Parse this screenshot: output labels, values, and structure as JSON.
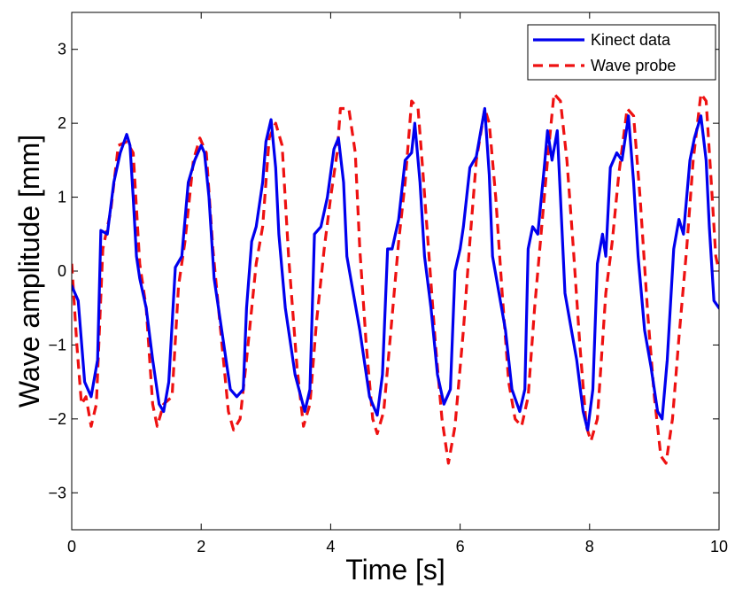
{
  "chart_data": {
    "type": "line",
    "title": "",
    "xlabel": "Time [s]",
    "ylabel": "Wave amplitude [mm]",
    "xlim": [
      0,
      10
    ],
    "ylim": [
      -3.5,
      3.5
    ],
    "xticks": [
      0,
      2,
      4,
      6,
      8,
      10
    ],
    "yticks": [
      -3,
      -2,
      -1,
      0,
      1,
      2,
      3
    ],
    "xtick_labels": [
      "0",
      "2",
      "4",
      "6",
      "8",
      "10"
    ],
    "ytick_labels": [
      "−3",
      "−2",
      "−1",
      "0",
      "1",
      "2",
      "3"
    ],
    "grid": false,
    "legend_position": "top-right",
    "series": [
      {
        "name": "Kinect data",
        "color": "#0000ee",
        "style": "solid",
        "points": [
          [
            0,
            -0.2
          ],
          [
            0.1,
            -0.4
          ],
          [
            0.2,
            -1.5
          ],
          [
            0.3,
            -1.7
          ],
          [
            0.4,
            -1.2
          ],
          [
            0.45,
            0.55
          ],
          [
            0.55,
            0.5
          ],
          [
            0.65,
            1.2
          ],
          [
            0.75,
            1.6
          ],
          [
            0.85,
            1.85
          ],
          [
            0.9,
            1.7
          ],
          [
            0.95,
            1.0
          ],
          [
            1.0,
            0.2
          ],
          [
            1.05,
            -0.1
          ],
          [
            1.15,
            -0.5
          ],
          [
            1.25,
            -1.2
          ],
          [
            1.35,
            -1.8
          ],
          [
            1.42,
            -1.9
          ],
          [
            1.5,
            -1.5
          ],
          [
            1.6,
            0.05
          ],
          [
            1.7,
            0.2
          ],
          [
            1.8,
            1.2
          ],
          [
            1.9,
            1.5
          ],
          [
            2.0,
            1.7
          ],
          [
            2.05,
            1.6
          ],
          [
            2.12,
            1.0
          ],
          [
            2.2,
            -0.1
          ],
          [
            2.25,
            -0.4
          ],
          [
            2.35,
            -1.0
          ],
          [
            2.45,
            -1.6
          ],
          [
            2.55,
            -1.7
          ],
          [
            2.65,
            -1.6
          ],
          [
            2.7,
            -0.5
          ],
          [
            2.78,
            0.4
          ],
          [
            2.85,
            0.6
          ],
          [
            2.95,
            1.2
          ],
          [
            3.0,
            1.75
          ],
          [
            3.08,
            2.05
          ],
          [
            3.15,
            1.4
          ],
          [
            3.2,
            0.5
          ],
          [
            3.3,
            -0.5
          ],
          [
            3.45,
            -1.4
          ],
          [
            3.6,
            -1.9
          ],
          [
            3.68,
            -1.6
          ],
          [
            3.75,
            0.5
          ],
          [
            3.85,
            0.6
          ],
          [
            3.95,
            1.0
          ],
          [
            4.05,
            1.65
          ],
          [
            4.12,
            1.8
          ],
          [
            4.2,
            1.2
          ],
          [
            4.25,
            0.2
          ],
          [
            4.35,
            -0.3
          ],
          [
            4.45,
            -0.8
          ],
          [
            4.6,
            -1.7
          ],
          [
            4.72,
            -1.95
          ],
          [
            4.8,
            -1.4
          ],
          [
            4.88,
            0.3
          ],
          [
            4.95,
            0.3
          ],
          [
            5.05,
            0.7
          ],
          [
            5.15,
            1.5
          ],
          [
            5.25,
            1.6
          ],
          [
            5.3,
            2.0
          ],
          [
            5.38,
            1.2
          ],
          [
            5.45,
            0.2
          ],
          [
            5.55,
            -0.5
          ],
          [
            5.65,
            -1.4
          ],
          [
            5.75,
            -1.8
          ],
          [
            5.85,
            -1.6
          ],
          [
            5.92,
            0.0
          ],
          [
            6.0,
            0.3
          ],
          [
            6.05,
            0.6
          ],
          [
            6.15,
            1.4
          ],
          [
            6.25,
            1.55
          ],
          [
            6.32,
            1.9
          ],
          [
            6.38,
            2.2
          ],
          [
            6.45,
            1.3
          ],
          [
            6.5,
            0.2
          ],
          [
            6.6,
            -0.3
          ],
          [
            6.7,
            -0.8
          ],
          [
            6.8,
            -1.6
          ],
          [
            6.92,
            -1.9
          ],
          [
            7.0,
            -1.6
          ],
          [
            7.05,
            0.3
          ],
          [
            7.12,
            0.6
          ],
          [
            7.2,
            0.5
          ],
          [
            7.3,
            1.4
          ],
          [
            7.35,
            1.9
          ],
          [
            7.42,
            1.5
          ],
          [
            7.5,
            1.9
          ],
          [
            7.55,
            1.0
          ],
          [
            7.62,
            -0.3
          ],
          [
            7.72,
            -0.8
          ],
          [
            7.8,
            -1.2
          ],
          [
            7.9,
            -1.9
          ],
          [
            7.97,
            -2.15
          ],
          [
            8.05,
            -1.6
          ],
          [
            8.12,
            0.1
          ],
          [
            8.2,
            0.5
          ],
          [
            8.25,
            0.2
          ],
          [
            8.32,
            1.4
          ],
          [
            8.42,
            1.6
          ],
          [
            8.5,
            1.5
          ],
          [
            8.6,
            2.1
          ],
          [
            8.68,
            1.2
          ],
          [
            8.75,
            0.2
          ],
          [
            8.85,
            -0.8
          ],
          [
            8.95,
            -1.3
          ],
          [
            9.05,
            -1.9
          ],
          [
            9.12,
            -2.0
          ],
          [
            9.2,
            -1.2
          ],
          [
            9.3,
            0.3
          ],
          [
            9.38,
            0.7
          ],
          [
            9.45,
            0.5
          ],
          [
            9.55,
            1.5
          ],
          [
            9.62,
            1.8
          ],
          [
            9.72,
            2.1
          ],
          [
            9.8,
            1.5
          ],
          [
            9.85,
            0.6
          ],
          [
            9.92,
            -0.4
          ],
          [
            10.0,
            -0.5
          ]
        ]
      },
      {
        "name": "Wave probe",
        "color": "#ee1111",
        "style": "dashed",
        "points": [
          [
            0,
            0.1
          ],
          [
            0.08,
            -1.0
          ],
          [
            0.15,
            -1.8
          ],
          [
            0.22,
            -1.7
          ],
          [
            0.3,
            -2.1
          ],
          [
            0.38,
            -1.8
          ],
          [
            0.48,
            0.3
          ],
          [
            0.6,
            0.8
          ],
          [
            0.72,
            1.7
          ],
          [
            0.85,
            1.75
          ],
          [
            0.95,
            1.6
          ],
          [
            1.05,
            0.1
          ],
          [
            1.15,
            -0.5
          ],
          [
            1.25,
            -1.8
          ],
          [
            1.32,
            -2.1
          ],
          [
            1.42,
            -1.8
          ],
          [
            1.55,
            -1.7
          ],
          [
            1.65,
            -0.2
          ],
          [
            1.75,
            0.4
          ],
          [
            1.88,
            1.5
          ],
          [
            1.98,
            1.8
          ],
          [
            2.08,
            1.6
          ],
          [
            2.18,
            0.3
          ],
          [
            2.3,
            -0.8
          ],
          [
            2.42,
            -1.9
          ],
          [
            2.5,
            -2.15
          ],
          [
            2.6,
            -2.0
          ],
          [
            2.7,
            -1.2
          ],
          [
            2.85,
            0.1
          ],
          [
            2.95,
            0.6
          ],
          [
            3.05,
            1.8
          ],
          [
            3.15,
            2.0
          ],
          [
            3.25,
            1.7
          ],
          [
            3.35,
            0.2
          ],
          [
            3.48,
            -1.3
          ],
          [
            3.58,
            -2.1
          ],
          [
            3.68,
            -1.8
          ],
          [
            3.78,
            -0.7
          ],
          [
            3.9,
            0.3
          ],
          [
            4.0,
            1.0
          ],
          [
            4.1,
            1.6
          ],
          [
            4.15,
            2.2
          ],
          [
            4.28,
            2.2
          ],
          [
            4.38,
            1.6
          ],
          [
            4.45,
            0.3
          ],
          [
            4.55,
            -1.0
          ],
          [
            4.65,
            -2.0
          ],
          [
            4.72,
            -2.2
          ],
          [
            4.82,
            -1.9
          ],
          [
            4.92,
            -0.9
          ],
          [
            5.05,
            0.4
          ],
          [
            5.15,
            1.2
          ],
          [
            5.25,
            2.3
          ],
          [
            5.35,
            2.2
          ],
          [
            5.42,
            1.4
          ],
          [
            5.52,
            0.2
          ],
          [
            5.62,
            -1.0
          ],
          [
            5.72,
            -2.0
          ],
          [
            5.82,
            -2.6
          ],
          [
            5.92,
            -2.1
          ],
          [
            6.05,
            -0.8
          ],
          [
            6.15,
            0.4
          ],
          [
            6.25,
            1.5
          ],
          [
            6.38,
            2.2
          ],
          [
            6.45,
            2.0
          ],
          [
            6.55,
            1.0
          ],
          [
            6.65,
            -0.3
          ],
          [
            6.75,
            -1.5
          ],
          [
            6.85,
            -2.0
          ],
          [
            6.95,
            -2.1
          ],
          [
            7.05,
            -1.7
          ],
          [
            7.15,
            -0.5
          ],
          [
            7.25,
            0.5
          ],
          [
            7.35,
            1.5
          ],
          [
            7.45,
            2.4
          ],
          [
            7.55,
            2.3
          ],
          [
            7.65,
            1.5
          ],
          [
            7.75,
            0.3
          ],
          [
            7.85,
            -1.0
          ],
          [
            7.95,
            -2.1
          ],
          [
            8.02,
            -2.3
          ],
          [
            8.12,
            -2.0
          ],
          [
            8.25,
            -0.3
          ],
          [
            8.35,
            0.4
          ],
          [
            8.45,
            1.3
          ],
          [
            8.58,
            2.2
          ],
          [
            8.68,
            2.1
          ],
          [
            8.78,
            1.0
          ],
          [
            8.9,
            -0.6
          ],
          [
            9.0,
            -1.7
          ],
          [
            9.1,
            -2.5
          ],
          [
            9.18,
            -2.6
          ],
          [
            9.28,
            -2.0
          ],
          [
            9.38,
            -0.9
          ],
          [
            9.5,
            0.3
          ],
          [
            9.6,
            1.5
          ],
          [
            9.72,
            2.4
          ],
          [
            9.8,
            2.3
          ],
          [
            9.88,
            1.2
          ],
          [
            9.95,
            0.2
          ],
          [
            10.0,
            0.0
          ]
        ]
      }
    ]
  }
}
